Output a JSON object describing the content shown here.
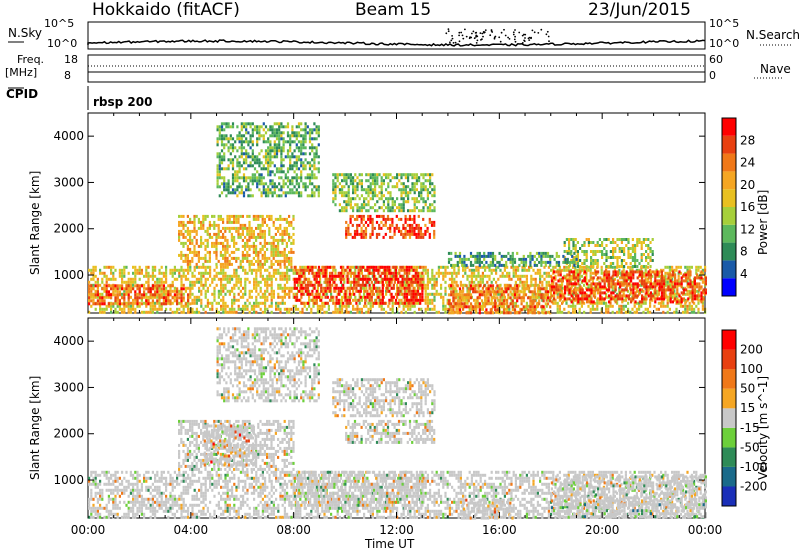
{
  "header": {
    "radar": "Hokkaido (fitACF)",
    "beam": "Beam 15",
    "date": "23/Jun/2015"
  },
  "top_panels": {
    "nsky_label": "N.Sky",
    "nsky_ticks": [
      "10^5",
      "10^0"
    ],
    "nsearch_label": "N.Search",
    "nsearch_ticks": [
      "10^5",
      "10^0"
    ],
    "freq_label": "Freq.",
    "freq_unit": "[MHz]",
    "freq_ticks": [
      "18",
      "8"
    ],
    "nave_label": "Nave",
    "nave_ticks": [
      "60",
      "0"
    ],
    "cpid_label": "CPID",
    "cpid_value": "rbsp 200"
  },
  "chart_data": [
    {
      "type": "heatmap",
      "title": "",
      "xlabel": "",
      "ylabel": "Slant Range [km]",
      "xlim": [
        0,
        24
      ],
      "ylim": [
        180,
        4500
      ],
      "yticks": [
        "1000",
        "2000",
        "3000",
        "4000"
      ],
      "colorbar": {
        "label": "Power [dB]",
        "ticks": [
          "4",
          "8",
          "12",
          "16",
          "20",
          "24",
          "28"
        ],
        "colors": [
          "#0000ff",
          "#1a5aa8",
          "#2e8b57",
          "#5cb85c",
          "#a6cf3a",
          "#e8c020",
          "#f5a623",
          "#f07818",
          "#e84010",
          "#ff0000"
        ]
      },
      "regions": [
        {
          "t0": 0.0,
          "t1": 24.0,
          "r0": 200,
          "r1": 1200,
          "level": 0.55
        },
        {
          "t0": 0.0,
          "t1": 4.0,
          "r0": 350,
          "r1": 800,
          "level": 0.8
        },
        {
          "t0": 3.5,
          "t1": 8.0,
          "r0": 1200,
          "r1": 2300,
          "level": 0.6
        },
        {
          "t0": 8.0,
          "t1": 13.0,
          "r0": 400,
          "r1": 1200,
          "level": 0.9
        },
        {
          "t0": 10.0,
          "t1": 13.5,
          "r0": 1800,
          "r1": 2300,
          "level": 0.85
        },
        {
          "t0": 14.0,
          "t1": 18.0,
          "r0": 200,
          "r1": 800,
          "level": 0.75
        },
        {
          "t0": 18.0,
          "t1": 24.0,
          "r0": 400,
          "r1": 1100,
          "level": 0.85
        },
        {
          "t0": 18.5,
          "t1": 22.0,
          "r0": 1200,
          "r1": 1800,
          "level": 0.45
        },
        {
          "t0": 5.0,
          "t1": 9.0,
          "r0": 2700,
          "r1": 4300,
          "level": 0.35
        },
        {
          "t0": 9.5,
          "t1": 13.5,
          "r0": 2400,
          "r1": 3200,
          "level": 0.4
        },
        {
          "t0": 14.0,
          "t1": 19.0,
          "r0": 1200,
          "r1": 1500,
          "level": 0.3
        }
      ]
    },
    {
      "type": "heatmap",
      "title": "",
      "xlabel": "Time UT",
      "ylabel": "Slant Range [km]",
      "xlim": [
        0,
        24
      ],
      "ylim": [
        180,
        4500
      ],
      "xticks": [
        "00:00",
        "04:00",
        "08:00",
        "12:00",
        "16:00",
        "20:00",
        "00:00"
      ],
      "yticks": [
        "1000",
        "2000",
        "3000",
        "4000"
      ],
      "colorbar": {
        "label": "Velocity [m s^-1]",
        "ticks": [
          "200",
          "100",
          "50",
          "15",
          "-15",
          "-50",
          "-100",
          "-200"
        ],
        "colors": [
          "#1a2fb8",
          "#1a6a8a",
          "#2e8b57",
          "#6ccf3a",
          "#c8c8c8",
          "#f5a623",
          "#f07818",
          "#e84010",
          "#ff0000"
        ]
      },
      "regions": [
        {
          "t0": 0.0,
          "t1": 24.0,
          "r0": 200,
          "r1": 1200,
          "level": 0.5
        },
        {
          "t0": 3.5,
          "t1": 8.0,
          "r0": 1200,
          "r1": 2300,
          "level": 0.5
        },
        {
          "t0": 8.0,
          "t1": 13.0,
          "r0": 400,
          "r1": 1200,
          "level": 0.5
        },
        {
          "t0": 10.0,
          "t1": 13.5,
          "r0": 1800,
          "r1": 2300,
          "level": 0.5
        },
        {
          "t0": 18.0,
          "t1": 24.0,
          "r0": 400,
          "r1": 1100,
          "level": 0.5
        },
        {
          "t0": 5.0,
          "t1": 9.0,
          "r0": 2700,
          "r1": 4300,
          "level": 0.5
        },
        {
          "t0": 9.5,
          "t1": 13.5,
          "r0": 2400,
          "r1": 3200,
          "level": 0.5
        },
        {
          "t0": 4.5,
          "t1": 6.5,
          "r0": 1300,
          "r1": 2200,
          "level": 0.35
        },
        {
          "t0": 14.5,
          "t1": 16.5,
          "r0": 200,
          "r1": 600,
          "level": 0.35
        },
        {
          "t0": 18.0,
          "t1": 24.0,
          "r0": 200,
          "r1": 500,
          "level": 0.65
        }
      ]
    }
  ]
}
